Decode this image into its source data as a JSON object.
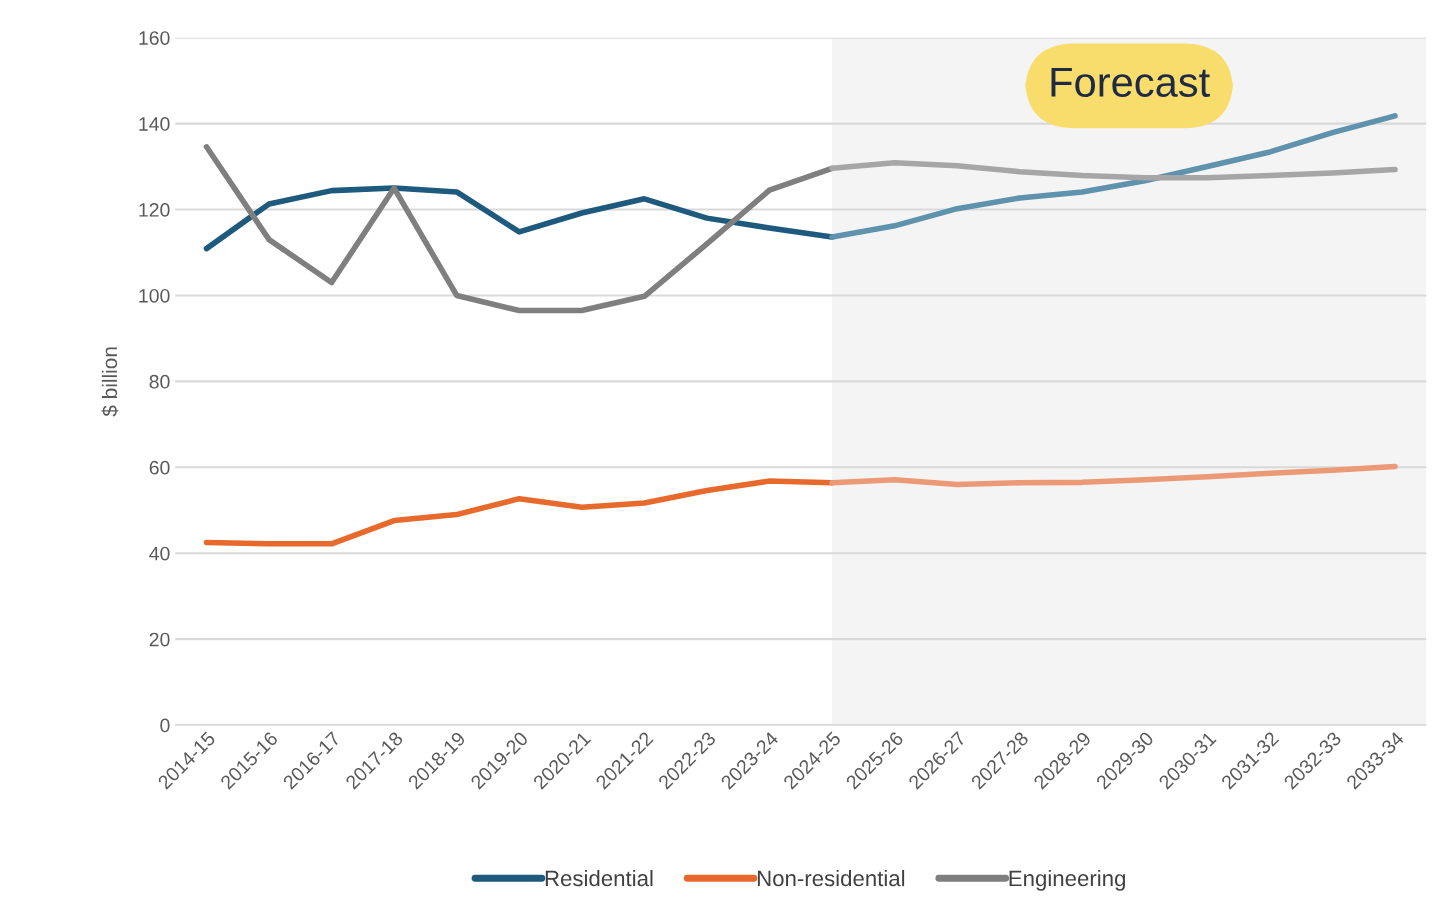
{
  "chart_data": {
    "type": "line",
    "ylabel": "$ billion",
    "categories": [
      "2014-15",
      "2015-16",
      "2016-17",
      "2017-18",
      "2018-19",
      "2019-20",
      "2020-21",
      "2021-22",
      "2022-23",
      "2023-24",
      "2024-25",
      "2025-26",
      "2026-27",
      "2027-28",
      "2028-29",
      "2029-30",
      "2030-31",
      "2031-32",
      "2032-33",
      "2033-34"
    ],
    "series": [
      {
        "name": "Residential",
        "color": "#1d5a7e",
        "values": [
          110.9,
          121.3,
          124.4,
          125,
          124.1,
          114.8,
          119.2,
          122.5,
          118,
          115.7,
          113.6,
          null,
          null,
          null,
          null,
          null,
          null,
          null,
          null,
          null
        ]
      },
      {
        "name": "Non-residential",
        "color": "#e8692c",
        "values": [
          42.5,
          42.2,
          42.2,
          47.6,
          49,
          52.7,
          50.7,
          51.7,
          54.6,
          56.8,
          56.4,
          null,
          null,
          null,
          null,
          null,
          null,
          null,
          null,
          null
        ]
      },
      {
        "name": "Engineering",
        "color": "#7f7f7f",
        "values": [
          134.6,
          113,
          103,
          125,
          100,
          96.5,
          96.5,
          99.8,
          112,
          124.5,
          129.6,
          null,
          null,
          null,
          null,
          null,
          null,
          null,
          null,
          null
        ]
      },
      {
        "color": "#5f93ad",
        "values": [
          null,
          null,
          null,
          null,
          null,
          null,
          null,
          null,
          null,
          null,
          113.6,
          116.2,
          120.2,
          122.7,
          124.1,
          126.7,
          130,
          133.4,
          137.9,
          141.8
        ]
      },
      {
        "color": "#ec9a76",
        "values": [
          null,
          null,
          null,
          null,
          null,
          null,
          null,
          null,
          null,
          null,
          56.4,
          57.1,
          56,
          56.4,
          56.5,
          57.1,
          57.8,
          58.6,
          59.3,
          60.2
        ]
      },
      {
        "color": "#a6a6a6",
        "values": [
          null,
          null,
          null,
          null,
          null,
          null,
          null,
          null,
          null,
          null,
          129.6,
          130.9,
          130.2,
          128.8,
          127.9,
          127.4,
          127.4,
          127.9,
          128.5,
          129.3
        ]
      }
    ],
    "ylim": [
      0,
      160
    ],
    "yticks": [
      0,
      20,
      40,
      60,
      80,
      100,
      120,
      140,
      160
    ],
    "bands": [
      {
        "axis": "x",
        "from": "2024-25",
        "to": "2033-34",
        "label": "Forecast",
        "color": "#f4f4f4"
      }
    ],
    "grid": "y",
    "legend": "bottom",
    "marker": "none",
    "line_style": "solid"
  }
}
